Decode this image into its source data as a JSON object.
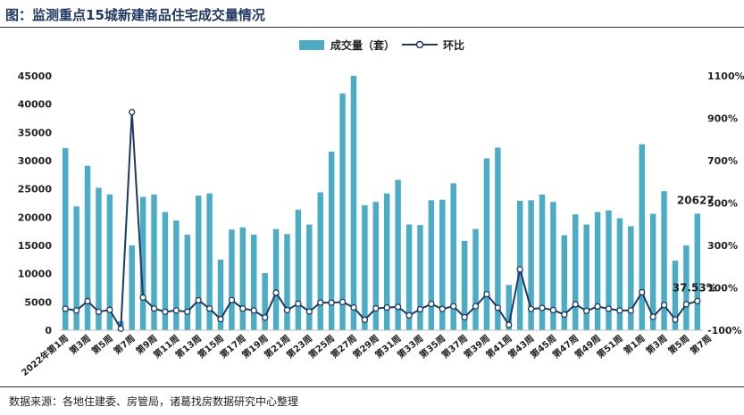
{
  "title": "图：监测重点15城新建商品住宅成交量情况",
  "source": "数据来源：各地住建委、房管局，诸葛找房数据研究中心整理",
  "chart_data": {
    "type": "bar",
    "colors": {
      "bar": "#4bacc6",
      "line": "#1f3864"
    },
    "legend": {
      "placement": "top",
      "bar_label": "成交量（套）",
      "line_label": "环比"
    },
    "y_left": {
      "ylim": [
        0,
        45000
      ],
      "ticks": [
        "0",
        "5000",
        "10000",
        "15000",
        "20000",
        "25000",
        "30000",
        "35000",
        "40000",
        "45000"
      ]
    },
    "y_right": {
      "ylim": [
        -100,
        1100
      ],
      "ticks": [
        "-100%",
        "100%",
        "300%",
        "500%",
        "700%",
        "900%",
        "1100%"
      ]
    },
    "x_tick_labels": [
      "2022年第1周",
      "第3周",
      "第5周",
      "第7周",
      "第9周",
      "第11周",
      "第13周",
      "第15周",
      "第17周",
      "第19周",
      "第21周",
      "第23周",
      "第25周",
      "第27周",
      "第29周",
      "第31周",
      "第33周",
      "第35周",
      "第37周",
      "第39周",
      "第41周",
      "第43周",
      "第45周",
      "第47周",
      "第49周",
      "第51周",
      "第1周",
      "第3周",
      "第5周",
      "第7周"
    ],
    "series": [
      {
        "name": "成交量（套）",
        "type": "bar",
        "values": [
          32200,
          21900,
          29100,
          25200,
          24000,
          1600,
          15000,
          23600,
          24000,
          20900,
          19400,
          16900,
          23800,
          24200,
          12500,
          17800,
          18200,
          16900,
          10100,
          17900,
          17000,
          21300,
          18700,
          24400,
          31600,
          41900,
          45000,
          22100,
          22700,
          24200,
          26600,
          18700,
          18600,
          23000,
          23100,
          26000,
          15800,
          17900,
          30400,
          32300,
          8000,
          22900,
          23000,
          24000,
          22700,
          16800,
          20500,
          18700,
          20900,
          21200,
          19800,
          18400,
          32900,
          20600,
          24600,
          12300,
          15000,
          20627
        ]
      },
      {
        "name": "环比",
        "type": "line",
        "values": [
          1,
          -7,
          37,
          -13,
          -4,
          -93,
          929,
          54,
          2,
          -13,
          -7,
          -13,
          41,
          2,
          -48,
          42,
          2,
          -7,
          -40,
          77,
          -5,
          25,
          -12,
          30,
          30,
          33,
          7,
          -51,
          3,
          7,
          10,
          -30,
          -1,
          24,
          0,
          13,
          -39,
          13,
          70,
          6,
          -75,
          187,
          0,
          5,
          -5,
          -26,
          22,
          -9,
          12,
          1,
          -7,
          -7,
          79,
          -37,
          19,
          -50,
          22,
          37.53
        ]
      }
    ],
    "annotations": {
      "last_bar_label": "20627",
      "last_line_label": "37.53%"
    }
  }
}
